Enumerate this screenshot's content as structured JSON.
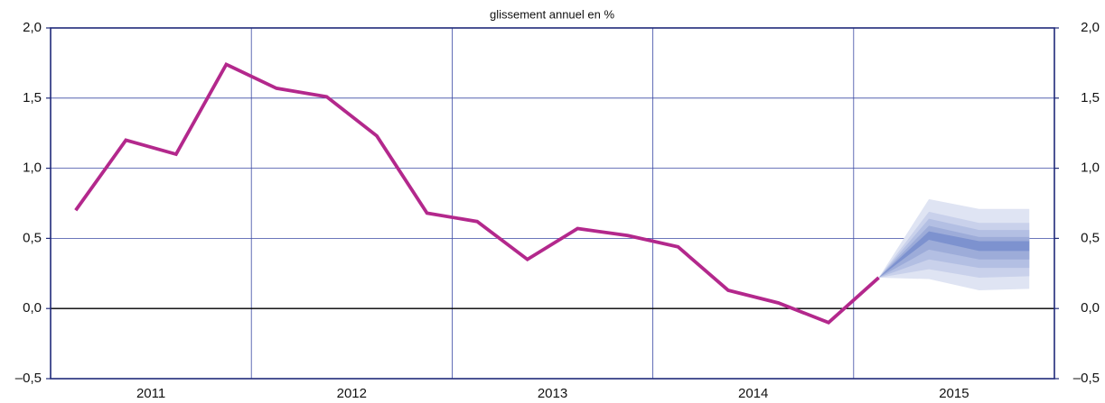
{
  "chart_data": {
    "type": "line",
    "subtitle": "glissement annuel en %",
    "xlim": [
      2011,
      2016
    ],
    "xticks": [
      {
        "value": 2011.5,
        "label": "2011"
      },
      {
        "value": 2012.5,
        "label": "2012"
      },
      {
        "value": 2013.5,
        "label": "2013"
      },
      {
        "value": 2014.5,
        "label": "2014"
      },
      {
        "value": 2015.5,
        "label": "2015"
      }
    ],
    "xgrid": [
      2012,
      2013,
      2014,
      2015
    ],
    "ylim": [
      -0.5,
      2.0
    ],
    "yticks": [
      {
        "value": -0.5,
        "label": "–0,5"
      },
      {
        "value": 0,
        "label": "0,0"
      },
      {
        "value": 0.5,
        "label": "0,5"
      },
      {
        "value": 1.0,
        "label": "1,0"
      },
      {
        "value": 1.5,
        "label": "1,5"
      },
      {
        "value": 2.0,
        "label": "2,0"
      }
    ],
    "grid": true,
    "zero_line": true,
    "ticks_both_sides": true,
    "series": [
      {
        "color": "#b3288c",
        "x": [
          2011.125,
          2011.375,
          2011.625,
          2011.875,
          2012.125,
          2012.375,
          2012.625,
          2012.875,
          2013.125,
          2013.375,
          2013.625,
          2013.875,
          2014.125,
          2014.375,
          2014.625,
          2014.875,
          2015.125
        ],
        "values": [
          0.7,
          1.2,
          1.1,
          1.74,
          1.57,
          1.51,
          1.23,
          0.68,
          0.62,
          0.35,
          0.57,
          0.52,
          0.44,
          0.13,
          0.04,
          -0.1,
          0.22
        ]
      }
    ],
    "fan": {
      "x": [
        2015.125,
        2015.375,
        2015.625,
        2015.875
      ],
      "bands": [
        {
          "color": "#dfe4f3",
          "lower": [
            0.22,
            0.21,
            0.13,
            0.14
          ],
          "upper": [
            0.22,
            0.78,
            0.71,
            0.71
          ]
        },
        {
          "color": "#c9d1eb",
          "lower": [
            0.22,
            0.28,
            0.22,
            0.23
          ],
          "upper": [
            0.22,
            0.69,
            0.61,
            0.61
          ]
        },
        {
          "color": "#b3bfe3",
          "lower": [
            0.22,
            0.35,
            0.29,
            0.29
          ],
          "upper": [
            0.22,
            0.64,
            0.56,
            0.56
          ]
        },
        {
          "color": "#9dacd9",
          "lower": [
            0.22,
            0.42,
            0.35,
            0.35
          ],
          "upper": [
            0.22,
            0.59,
            0.51,
            0.51
          ]
        },
        {
          "color": "#7d92cf",
          "lower": [
            0.22,
            0.49,
            0.41,
            0.41
          ],
          "upper": [
            0.22,
            0.55,
            0.48,
            0.48
          ]
        }
      ]
    }
  }
}
